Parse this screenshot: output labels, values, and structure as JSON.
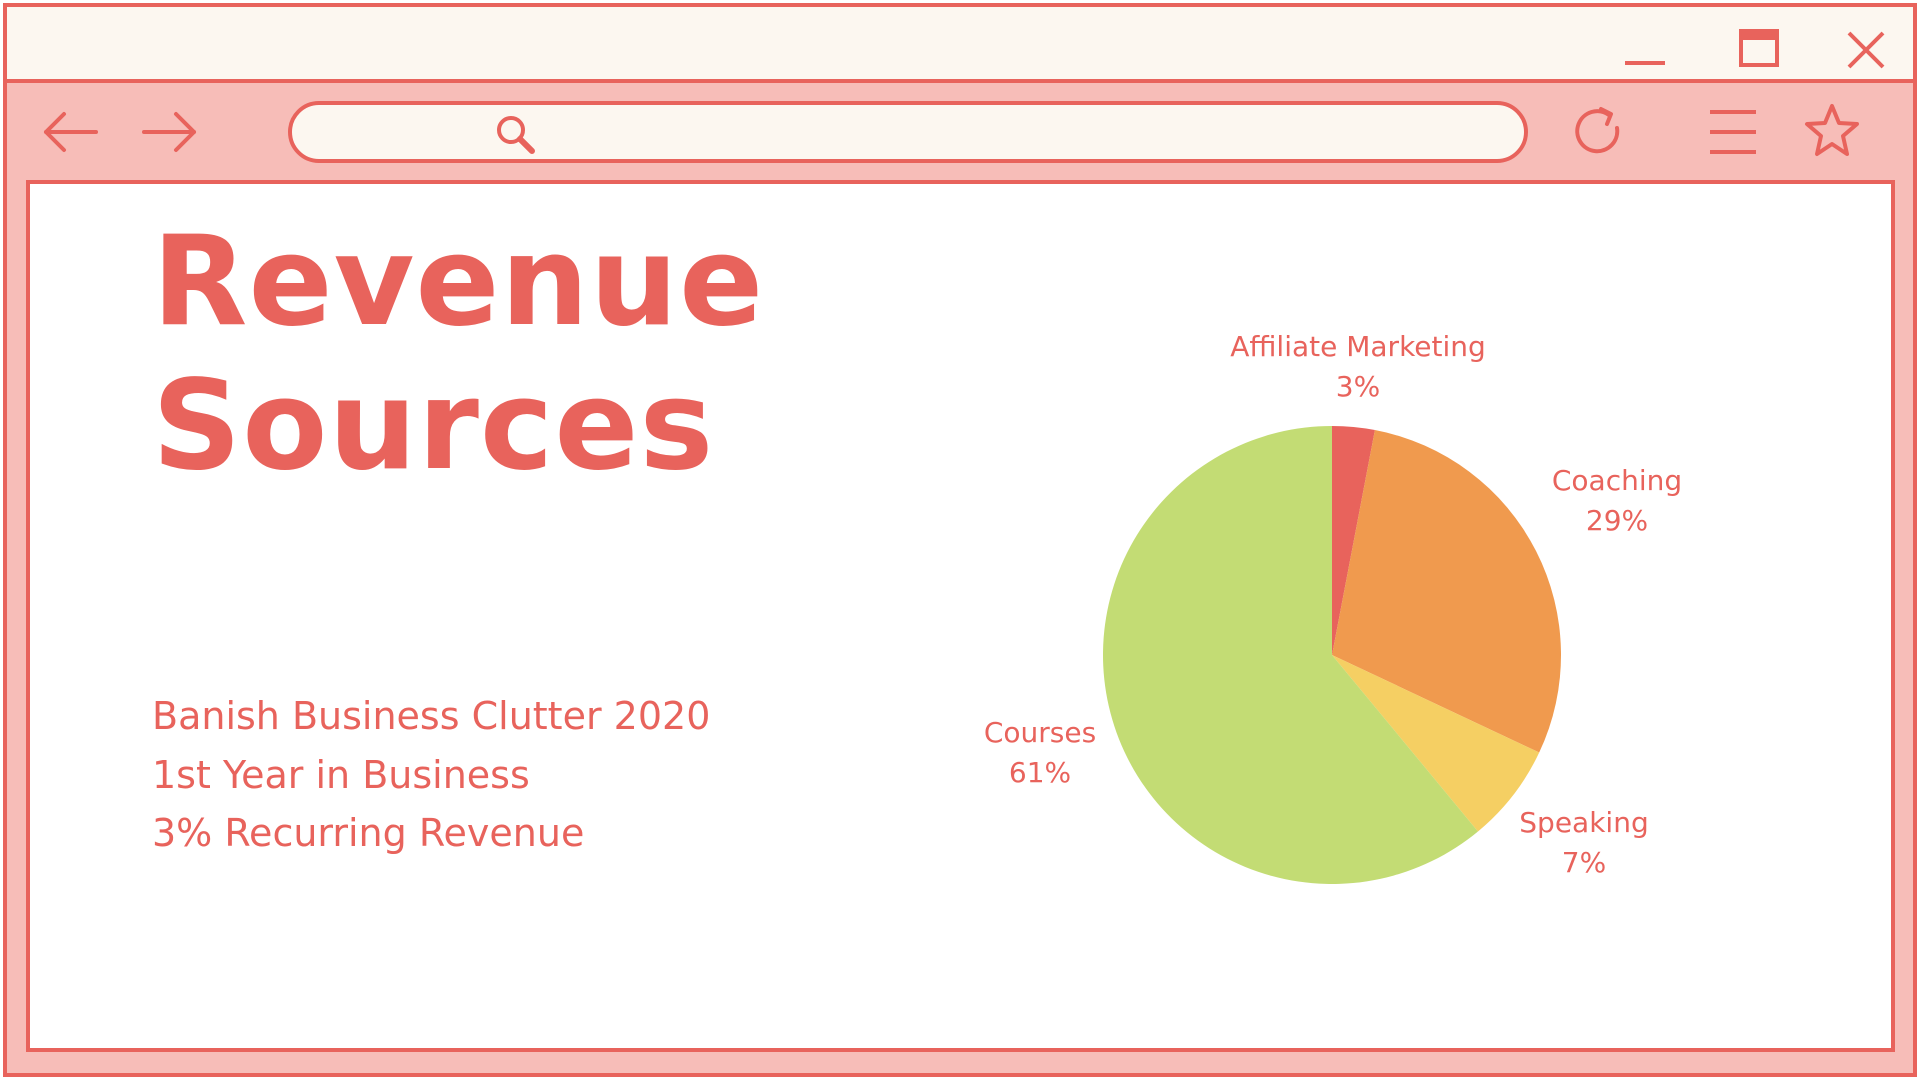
{
  "window_controls": {
    "minimize_icon": "minimize-icon",
    "maximize_icon": "maximize-icon",
    "close_icon": "close-icon"
  },
  "toolbar": {
    "back_icon": "arrow-left-icon",
    "forward_icon": "arrow-right-icon",
    "search_icon": "search-icon",
    "search_value": "",
    "reload_icon": "reload-icon",
    "menu_icon": "hamburger-menu-icon",
    "bookmark_icon": "star-icon"
  },
  "colors": {
    "accent": "#e8635c",
    "frame_fill": "#f7bdb8",
    "titlebar_fill": "#fcf7f0",
    "content_bg": "#ffffff"
  },
  "page": {
    "title_line1": "Revenue",
    "title_line2": "Sources",
    "subtitle_lines": [
      "Banish Business Clutter 2020",
      "1st Year in Business",
      "3% Recurring Revenue"
    ]
  },
  "chart_data": {
    "type": "pie",
    "start_angle_deg": 0,
    "direction": "clockwise",
    "slices": [
      {
        "label": "Affiliate Marketing",
        "value": 3,
        "value_label": "3%",
        "color": "#e8635c"
      },
      {
        "label": "Coaching",
        "value": 29,
        "value_label": "29%",
        "color": "#f09a4e"
      },
      {
        "label": "Speaking",
        "value": 7,
        "value_label": "7%",
        "color": "#f5cf63"
      },
      {
        "label": "Courses",
        "value": 61,
        "value_label": "61%",
        "color": "#c3dc74"
      }
    ]
  }
}
